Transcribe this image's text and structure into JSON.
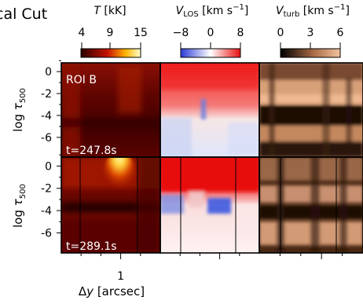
{
  "page_title_fragment": "cal Cut",
  "colorbars": [
    {
      "title": "T [kK]",
      "ticks": [
        "4",
        "9",
        "15"
      ],
      "range": [
        4,
        15
      ]
    },
    {
      "title": "V_LOS [km s^-1]",
      "ticks": [
        "−8",
        "0",
        "8"
      ],
      "range": [
        -8,
        8
      ]
    },
    {
      "title": "V_turb [km s^-1]",
      "ticks": [
        "0",
        "3",
        "6"
      ],
      "range": [
        0,
        6
      ]
    }
  ],
  "chart_data": {
    "type": "heatmap",
    "title": "",
    "xlabel": "Δy [arcsec]",
    "ylabel": "log τ500",
    "x_ticks": [
      "1"
    ],
    "y_ticks": [
      "-6",
      "-4",
      "-2",
      "0"
    ],
    "ylim": [
      0.8,
      -7.8
    ],
    "grid": false,
    "rows": [
      {
        "roi": "ROI B",
        "time": "t=247.8s"
      },
      {
        "roi": "",
        "time": "t=289.1s"
      }
    ],
    "columns": [
      "T",
      "V_LOS",
      "V_turb"
    ]
  },
  "colors": {
    "temp_dark": "#3a0000",
    "temp_mid": "#8e0a00",
    "temp_hot": "#fff39a",
    "vlos_red": "#e81010",
    "vlos_blue": "#3050e0",
    "vturb_tan": "#e3a57a"
  }
}
